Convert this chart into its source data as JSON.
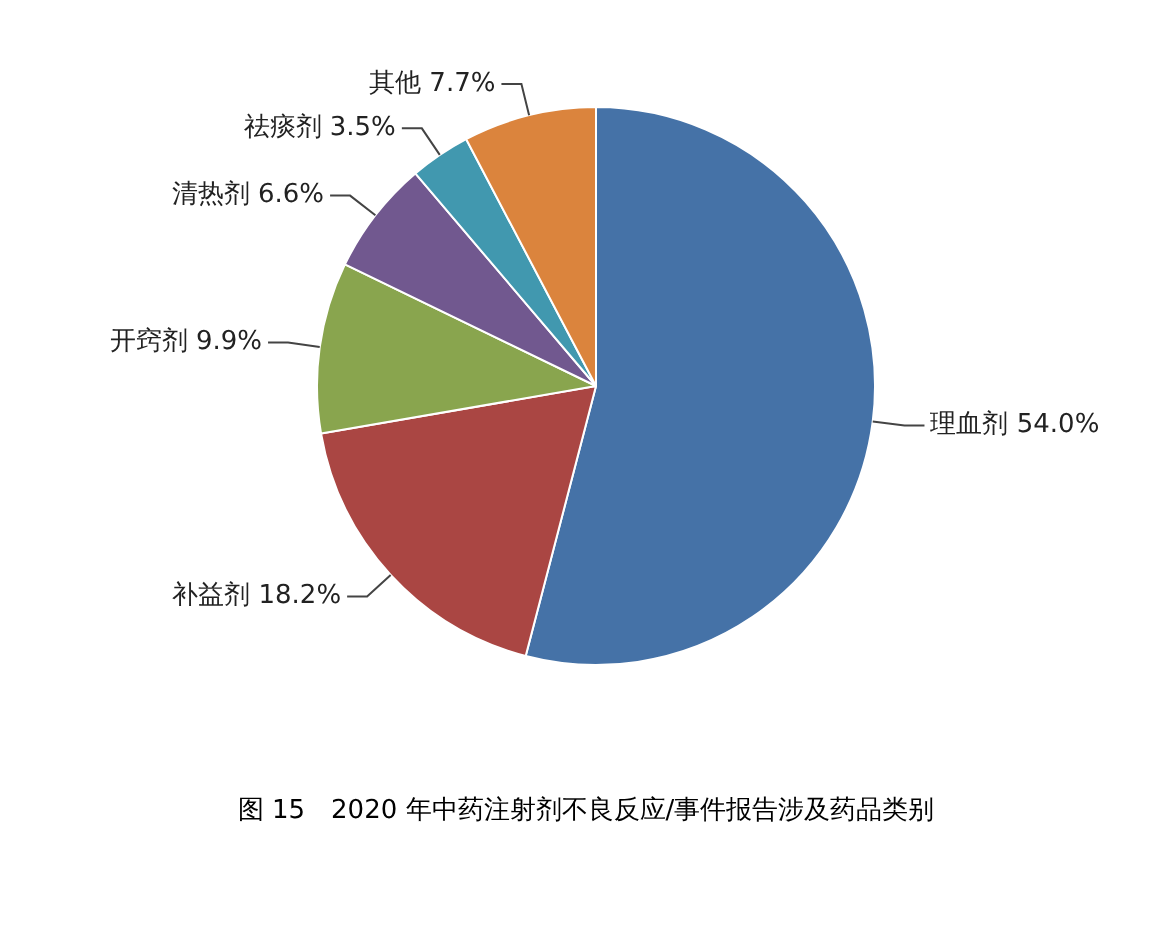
{
  "chart_data": {
    "type": "pie",
    "title": "图 15　2020 年中药注射剂不良反应/事件报告涉及药品类别",
    "categories": [
      "理血剂",
      "补益剂",
      "开窍剂",
      "清热剂",
      "祛痰剂",
      "其他"
    ],
    "values": [
      54.0,
      18.2,
      9.9,
      6.6,
      3.5,
      7.7
    ],
    "value_labels": [
      "54.0%",
      "18.2%",
      "9.9%",
      "6.6%",
      "3.5%",
      "7.7%"
    ],
    "colors": [
      "#4572a7",
      "#aa4643",
      "#89a54e",
      "#71588f",
      "#4198af",
      "#db843d"
    ],
    "legend": false
  }
}
